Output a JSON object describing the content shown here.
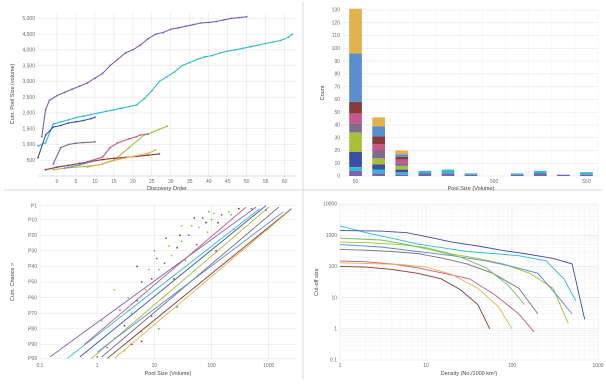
{
  "palette": [
    "#7f5fb0",
    "#35b8cf",
    "#3b4fa8",
    "#a7bf3a",
    "#7a6e8c",
    "#c35a8a",
    "#8a3a3a",
    "#5a8fcf",
    "#e2b24f",
    "#6cc05a",
    "#e07fb0",
    "#3a7f8a"
  ],
  "chart_data": [
    {
      "id": "cumulative",
      "type": "line",
      "xlabel": "Discovery Order",
      "ylabel": "Cum. Pool Size (volume)",
      "xlim": [
        -5,
        63
      ],
      "ylim": [
        0,
        5200
      ],
      "xticks": [
        "0",
        "5",
        "10",
        "15",
        "20",
        "25",
        "30",
        "35",
        "40",
        "45",
        "50",
        "55",
        "60"
      ],
      "yticks": [
        "500",
        "1,000",
        "1,500",
        "2,000",
        "2,500",
        "3,000",
        "3,500",
        "4,000",
        "4,500",
        "5,000"
      ],
      "grid": true,
      "series": [
        {
          "x": [
            -4,
            -3,
            -2,
            0,
            2,
            4,
            6,
            8,
            10,
            12,
            14,
            16,
            18,
            20,
            22,
            24,
            26,
            28,
            30,
            32,
            34,
            36,
            38,
            40,
            42,
            44,
            46,
            48,
            50
          ],
          "y": [
            1250,
            2100,
            2400,
            2550,
            2650,
            2750,
            2850,
            2950,
            3100,
            3250,
            3500,
            3700,
            3900,
            4000,
            4150,
            4350,
            4500,
            4550,
            4650,
            4700,
            4750,
            4800,
            4850,
            4870,
            4900,
            4950,
            5000,
            5020,
            5050
          ]
        },
        {
          "x": [
            -5,
            -3,
            -1,
            1,
            3,
            5,
            7,
            9,
            11,
            13,
            15,
            17,
            19,
            21,
            23,
            25,
            27,
            29,
            31,
            33,
            35,
            37,
            39,
            41,
            43,
            45,
            47,
            49,
            51,
            53,
            55,
            57,
            59,
            61,
            62
          ],
          "y": [
            950,
            1050,
            1650,
            1720,
            1780,
            1850,
            1900,
            1950,
            2000,
            2050,
            2100,
            2150,
            2200,
            2250,
            2450,
            2700,
            3000,
            3150,
            3300,
            3500,
            3600,
            3700,
            3780,
            3820,
            3900,
            3960,
            4000,
            4050,
            4100,
            4150,
            4200,
            4250,
            4300,
            4400,
            4500
          ]
        },
        {
          "x": [
            -5,
            -3,
            -1,
            1,
            3,
            5,
            7,
            9,
            10
          ],
          "y": [
            580,
            1300,
            1550,
            1600,
            1680,
            1720,
            1760,
            1820,
            1860
          ]
        },
        {
          "x": [
            -1,
            3,
            7,
            11,
            15,
            19,
            23,
            25,
            27,
            29
          ],
          "y": [
            200,
            260,
            300,
            350,
            500,
            900,
            1300,
            1380,
            1480,
            1580
          ]
        },
        {
          "x": [
            -1,
            1,
            3,
            5,
            7,
            10
          ],
          "y": [
            380,
            900,
            1000,
            1040,
            1060,
            1080
          ]
        },
        {
          "x": [
            8,
            12,
            14,
            16,
            19,
            21,
            22,
            24
          ],
          "y": [
            450,
            600,
            900,
            1050,
            1180,
            1250,
            1300,
            1330
          ]
        },
        {
          "x": [
            -3,
            0,
            3,
            6,
            9,
            12,
            15,
            18,
            21,
            24,
            27
          ],
          "y": [
            200,
            280,
            340,
            400,
            460,
            520,
            560,
            590,
            620,
            660,
            700
          ]
        },
        {
          "x": [
            2,
            4,
            6,
            8,
            9
          ],
          "y": [
            250,
            300,
            350,
            420,
            450
          ]
        },
        {
          "x": [
            8,
            12,
            16,
            20,
            24,
            26
          ],
          "y": [
            280,
            380,
            520,
            620,
            720,
            820
          ]
        }
      ]
    },
    {
      "id": "histogram",
      "type": "bar",
      "xlabel": "Pool Size (Volume)",
      "ylabel": "Count",
      "ylim": [
        0,
        130
      ],
      "yticks": [
        "0",
        "10",
        "20",
        "30",
        "40",
        "50",
        "60",
        "70",
        "80",
        "90",
        "100",
        "110",
        "120",
        "130"
      ],
      "xticks": [
        "50",
        "500",
        "550"
      ],
      "grid": true,
      "bars": [
        {
          "segments": [
            4,
            3,
            12,
            15,
            7,
            8,
            9,
            38,
            35
          ]
        },
        {
          "segments": [
            2,
            3,
            4,
            5,
            6,
            5,
            6,
            8,
            7
          ]
        },
        {
          "segments": [
            1,
            2,
            2,
            3,
            2,
            3,
            2,
            2,
            3
          ]
        },
        {
          "segments": [
            2,
            2
          ]
        },
        {
          "segments": [
            2,
            3
          ]
        },
        {
          "segments": [
            1,
            1
          ]
        },
        {
          "segments": [
            0
          ]
        },
        {
          "segments": [
            1,
            1
          ]
        },
        {
          "segments": [
            2,
            2
          ]
        },
        {
          "segments": [
            1
          ]
        },
        {
          "segments": [
            1,
            2
          ]
        }
      ]
    },
    {
      "id": "probability",
      "type": "scatter",
      "xlabel": "Pool Size (Volume)",
      "ylabel": "Cum. Chance >",
      "xscale": "log",
      "xlim": [
        0.1,
        3000
      ],
      "xticks": [
        {
          "v": 0.1,
          "label": "0.1"
        },
        {
          "v": 1,
          "label": "1"
        },
        {
          "v": 10,
          "label": "10"
        },
        {
          "v": 100,
          "label": "100"
        },
        {
          "v": 1000,
          "label": "1000"
        }
      ],
      "yticks": [
        "P1",
        "P10",
        "P20",
        "P30",
        "P40",
        "P50",
        "P60",
        "P70",
        "P80",
        "P90",
        "P99"
      ],
      "grid": true,
      "lines": [
        {
          "x1": 0.15,
          "y1": 0.98,
          "x2": 600,
          "y2": 0.02
        },
        {
          "x1": 0.3,
          "y1": 0.99,
          "x2": 700,
          "y2": 0.03
        },
        {
          "x1": 0.5,
          "y1": 0.98,
          "x2": 900,
          "y2": 0.01
        },
        {
          "x1": 0.8,
          "y1": 0.99,
          "x2": 1000,
          "y2": 0.02
        },
        {
          "x1": 1.2,
          "y1": 0.98,
          "x2": 1500,
          "y2": 0.02
        },
        {
          "x1": 0.6,
          "y1": 0.9,
          "x2": 400,
          "y2": 0.02
        },
        {
          "x1": 1.5,
          "y1": 0.99,
          "x2": 2500,
          "y2": 0.03
        },
        {
          "x1": 1.0,
          "y1": 0.95,
          "x2": 1800,
          "y2": 0.05
        },
        {
          "x1": 2.0,
          "y1": 0.99,
          "x2": 2200,
          "y2": 0.05
        }
      ],
      "points": [
        [
          1.5,
          0.92
        ],
        [
          2,
          0.86
        ],
        [
          3,
          0.78
        ],
        [
          4,
          0.7
        ],
        [
          5,
          0.62
        ],
        [
          7,
          0.55
        ],
        [
          9,
          0.48
        ],
        [
          12,
          0.42
        ],
        [
          15,
          0.38
        ],
        [
          20,
          0.33
        ],
        [
          25,
          0.28
        ],
        [
          30,
          0.24
        ],
        [
          40,
          0.2
        ],
        [
          60,
          0.15
        ],
        [
          80,
          0.12
        ],
        [
          100,
          0.1
        ],
        [
          150,
          0.07
        ],
        [
          200,
          0.05
        ],
        [
          300,
          0.03
        ],
        [
          1.2,
          0.75
        ],
        [
          2.5,
          0.68
        ],
        [
          3.5,
          0.6
        ],
        [
          6,
          0.5
        ],
        [
          8,
          0.42
        ],
        [
          11,
          0.35
        ],
        [
          18,
          0.27
        ],
        [
          28,
          0.2
        ],
        [
          45,
          0.14
        ],
        [
          70,
          0.09
        ],
        [
          110,
          0.06
        ],
        [
          4,
          0.9
        ],
        [
          6,
          0.82
        ],
        [
          9,
          0.72
        ],
        [
          14,
          0.6
        ],
        [
          22,
          0.48
        ],
        [
          35,
          0.36
        ],
        [
          55,
          0.26
        ],
        [
          85,
          0.18
        ],
        [
          130,
          0.12
        ],
        [
          220,
          0.07
        ],
        [
          500,
          0.03
        ],
        [
          2,
          0.55
        ],
        [
          5,
          0.4
        ],
        [
          10,
          0.3
        ],
        [
          16,
          0.22
        ],
        [
          30,
          0.14
        ],
        [
          50,
          0.09
        ],
        [
          90,
          0.05
        ],
        [
          1,
          0.98
        ],
        [
          3,
          0.94
        ],
        [
          6,
          0.88
        ],
        [
          12,
          0.8
        ],
        [
          25,
          0.66
        ],
        [
          60,
          0.45
        ],
        [
          120,
          0.3
        ],
        [
          250,
          0.16
        ],
        [
          900,
          0.04
        ]
      ]
    },
    {
      "id": "cutoff",
      "type": "line",
      "xlabel": "Density (No./1000 km²)",
      "ylabel": "Cut-off size",
      "xscale": "log",
      "yscale": "log",
      "xlim": [
        1,
        1000
      ],
      "ylim": [
        0.1,
        10000
      ],
      "xticks": [
        {
          "v": 1,
          "label": "1"
        },
        {
          "v": 10,
          "label": "10"
        },
        {
          "v": 100,
          "label": "100"
        },
        {
          "v": 1000,
          "label": "1000"
        }
      ],
      "yticks": [
        {
          "v": 0.1,
          "label": "0.1"
        },
        {
          "v": 1,
          "label": "1"
        },
        {
          "v": 10,
          "label": "10"
        },
        {
          "v": 100,
          "label": "100"
        },
        {
          "v": 1000,
          "label": "1000"
        },
        {
          "v": 10000,
          "label": "10000"
        }
      ],
      "grid": true,
      "series": [
        {
          "x": [
            1,
            2,
            4,
            8,
            15,
            30,
            60,
            120,
            250,
            400,
            550
          ],
          "y": [
            2000,
            1200,
            800,
            520,
            400,
            300,
            260,
            220,
            150,
            40,
            8
          ]
        },
        {
          "x": [
            1,
            3,
            6,
            10,
            20,
            40,
            80,
            150,
            300,
            500,
            700
          ],
          "y": [
            1400,
            1350,
            1200,
            900,
            600,
            450,
            320,
            250,
            180,
            120,
            2
          ]
        },
        {
          "x": [
            1,
            2,
            5,
            10,
            20,
            40,
            80,
            160,
            300,
            450
          ],
          "y": [
            600,
            580,
            500,
            400,
            250,
            180,
            120,
            60,
            20,
            1.5
          ]
        },
        {
          "x": [
            1,
            2,
            4,
            8,
            16,
            30,
            60,
            120,
            200
          ],
          "y": [
            350,
            330,
            300,
            260,
            180,
            120,
            60,
            20,
            3
          ]
        },
        {
          "x": [
            1,
            2,
            4,
            8,
            16,
            32,
            64,
            120,
            180
          ],
          "y": [
            150,
            140,
            120,
            90,
            60,
            40,
            12,
            3,
            0.8
          ]
        },
        {
          "x": [
            1,
            2,
            4,
            8,
            15,
            25,
            40,
            55
          ],
          "y": [
            100,
            95,
            80,
            60,
            40,
            18,
            6,
            1
          ]
        },
        {
          "x": [
            1,
            3,
            8,
            20,
            50,
            100,
            200,
            350,
            500
          ],
          "y": [
            500,
            420,
            300,
            220,
            150,
            100,
            60,
            10,
            3
          ]
        },
        {
          "x": [
            1,
            2,
            5,
            10,
            20,
            40,
            70,
            100
          ],
          "y": [
            130,
            125,
            115,
            95,
            55,
            20,
            5,
            1
          ]
        },
        {
          "x": [
            1,
            3,
            6,
            12,
            25,
            50,
            90,
            140
          ],
          "y": [
            800,
            700,
            500,
            330,
            200,
            90,
            25,
            6
          ]
        }
      ]
    }
  ]
}
